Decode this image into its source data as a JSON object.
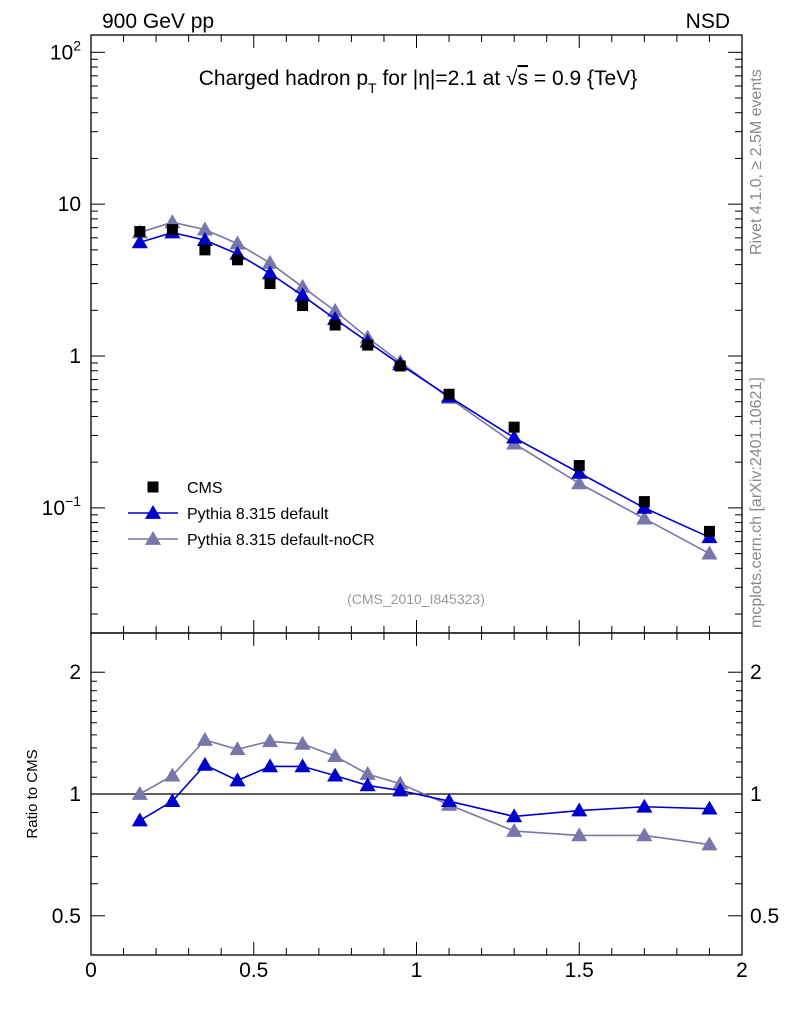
{
  "header": {
    "left": "900 GeV pp",
    "right": "NSD"
  },
  "side_labels": {
    "rivet": "Rivet 4.1.0, ≥ 2.5M events",
    "mcplots": "mcplots.cern.ch [arXiv:2401.10621]"
  },
  "chart_data": [
    {
      "type": "line",
      "panel": "main",
      "title_parts": {
        "a": "Charged hadron p",
        "a_sub": "T",
        "b": " for |η|=2.1 at ",
        "root": "√",
        "s": "s",
        "c": " = 0.9 {TeV}"
      },
      "analysis_tag": "(CMS_2010_I845323)",
      "yscale": "log",
      "xlim": [
        0,
        2
      ],
      "ylim": [
        0.015,
        130
      ],
      "x_ticks": [
        0,
        0.5,
        1,
        1.5,
        2
      ],
      "y_ticks": [
        {
          "value": 0.1,
          "base": "10",
          "exp": "−1"
        },
        {
          "value": 1,
          "base": "1",
          "exp": ""
        },
        {
          "value": 10,
          "base": "10",
          "exp": ""
        },
        {
          "value": 100,
          "base": "10",
          "exp": "2"
        }
      ],
      "legend_position": "left-bottom",
      "series": [
        {
          "name": "CMS",
          "marker": "square",
          "color": "#000000",
          "x": [
            0.15,
            0.25,
            0.35,
            0.45,
            0.55,
            0.65,
            0.75,
            0.85,
            0.95,
            1.1,
            1.3,
            1.5,
            1.7,
            1.9
          ],
          "y": [
            6.6,
            6.8,
            5.0,
            4.3,
            3.0,
            2.15,
            1.6,
            1.18,
            0.86,
            0.56,
            0.34,
            0.19,
            0.11,
            0.07
          ]
        },
        {
          "name": "Pythia 8.315 default",
          "marker": "triangle",
          "color": "#0000cc",
          "x": [
            0.15,
            0.25,
            0.35,
            0.45,
            0.55,
            0.65,
            0.75,
            0.85,
            0.95,
            1.1,
            1.3,
            1.5,
            1.7,
            1.9
          ],
          "y": [
            5.6,
            6.5,
            5.8,
            4.7,
            3.5,
            2.5,
            1.75,
            1.24,
            0.88,
            0.54,
            0.29,
            0.17,
            0.1,
            0.064
          ]
        },
        {
          "name": "Pythia 8.315 default-noCR",
          "marker": "triangle",
          "color": "#7777aa",
          "x": [
            0.15,
            0.25,
            0.35,
            0.45,
            0.55,
            0.65,
            0.75,
            0.85,
            0.95,
            1.1,
            1.3,
            1.5,
            1.7,
            1.9
          ],
          "y": [
            6.5,
            7.6,
            6.8,
            5.5,
            4.1,
            2.85,
            1.98,
            1.32,
            0.91,
            0.53,
            0.265,
            0.145,
            0.085,
            0.05
          ]
        }
      ]
    },
    {
      "type": "line",
      "panel": "ratio",
      "ylabel": "Ratio to CMS",
      "yscale": "log",
      "xlim": [
        0,
        2
      ],
      "ylim": [
        0.4,
        2.5
      ],
      "x_ticks": [
        0,
        0.5,
        1,
        1.5,
        2
      ],
      "y_ticks": [
        0.5,
        1,
        2
      ],
      "reference_line": 1,
      "series": [
        {
          "name": "Pythia 8.315 default",
          "color": "#0000cc",
          "x": [
            0.15,
            0.25,
            0.35,
            0.45,
            0.55,
            0.65,
            0.75,
            0.85,
            0.95,
            1.1,
            1.3,
            1.5,
            1.7,
            1.9
          ],
          "y": [
            0.86,
            0.96,
            1.18,
            1.08,
            1.17,
            1.17,
            1.11,
            1.05,
            1.02,
            0.96,
            0.88,
            0.91,
            0.93,
            0.92
          ]
        },
        {
          "name": "Pythia 8.315 default-noCR",
          "color": "#7777aa",
          "x": [
            0.15,
            0.25,
            0.35,
            0.45,
            0.55,
            0.65,
            0.75,
            0.85,
            0.95,
            1.1,
            1.3,
            1.5,
            1.7,
            1.9
          ],
          "y": [
            1.0,
            1.11,
            1.36,
            1.29,
            1.35,
            1.33,
            1.24,
            1.12,
            1.06,
            0.94,
            0.81,
            0.79,
            0.79,
            0.75
          ]
        }
      ]
    }
  ]
}
